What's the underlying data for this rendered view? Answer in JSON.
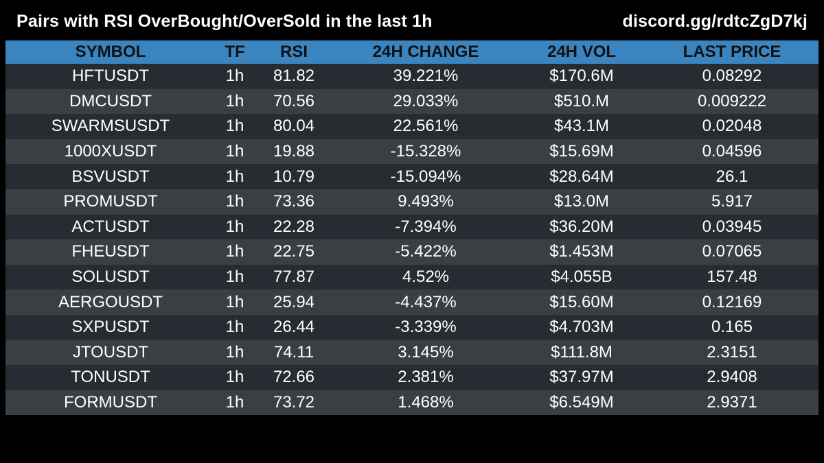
{
  "header": {
    "title": "Pairs with RSI OverBought/OverSold in the last 1h",
    "link": "discord.gg/rdtcZgD7kj"
  },
  "chart_data": {
    "type": "table",
    "columns": [
      "SYMBOL",
      "TF",
      "RSI",
      "24H CHANGE",
      "24H VOL",
      "LAST PRICE"
    ],
    "rows": [
      [
        "HFTUSDT",
        "1h",
        "81.82",
        "39.221%",
        "$170.6M",
        "0.08292"
      ],
      [
        "DMCUSDT",
        "1h",
        "70.56",
        "29.033%",
        "$510.M",
        "0.009222"
      ],
      [
        "SWARMSUSDT",
        "1h",
        "80.04",
        "22.561%",
        "$43.1M",
        "0.02048"
      ],
      [
        "1000XUSDT",
        "1h",
        "19.88",
        "-15.328%",
        "$15.69M",
        "0.04596"
      ],
      [
        "BSVUSDT",
        "1h",
        "10.79",
        "-15.094%",
        "$28.64M",
        "26.1"
      ],
      [
        "PROMUSDT",
        "1h",
        "73.36",
        "9.493%",
        "$13.0M",
        "5.917"
      ],
      [
        "ACTUSDT",
        "1h",
        "22.28",
        "-7.394%",
        "$36.20M",
        "0.03945"
      ],
      [
        "FHEUSDT",
        "1h",
        "22.75",
        "-5.422%",
        "$1.453M",
        "0.07065"
      ],
      [
        "SOLUSDT",
        "1h",
        "77.87",
        "4.52%",
        "$4.055B",
        "157.48"
      ],
      [
        "AERGOUSDT",
        "1h",
        "25.94",
        "-4.437%",
        "$15.60M",
        "0.12169"
      ],
      [
        "SXPUSDT",
        "1h",
        "26.44",
        "-3.339%",
        "$4.703M",
        "0.165"
      ],
      [
        "JTOUSDT",
        "1h",
        "74.11",
        "3.145%",
        "$111.8M",
        "2.3151"
      ],
      [
        "TONUSDT",
        "1h",
        "72.66",
        "2.381%",
        "$37.97M",
        "2.9408"
      ],
      [
        "FORMUSDT",
        "1h",
        "73.72",
        "1.468%",
        "$6.549M",
        "2.9371"
      ]
    ]
  },
  "colors": {
    "background": "#000000",
    "header_row": "#3a84c0",
    "row_dark": "#262c31",
    "row_light": "#3a3f44",
    "text": "#ffffff",
    "header_text": "#111111"
  }
}
